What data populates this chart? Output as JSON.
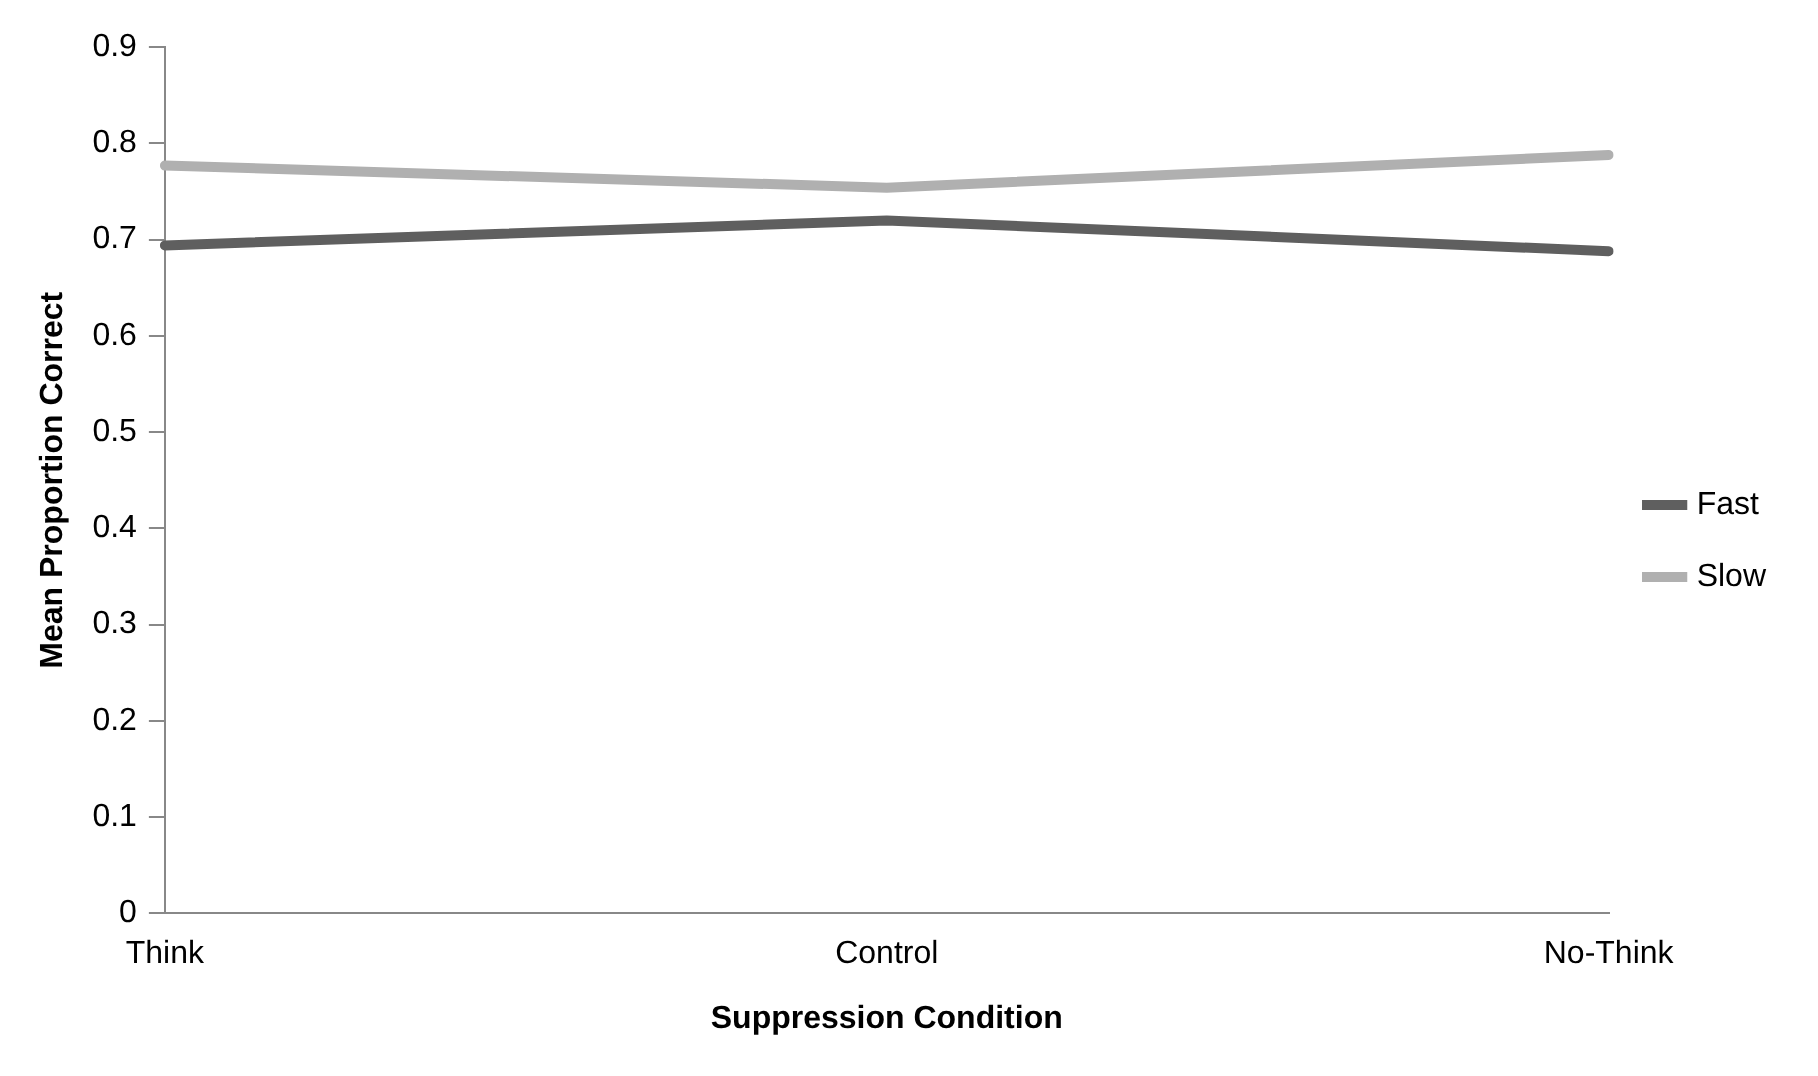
{
  "chart_data": {
    "type": "line",
    "xlabel": "Suppression Condition",
    "ylabel": "Mean Proportion Correct",
    "categories": [
      "Think",
      "Control",
      "No-Think"
    ],
    "series": [
      {
        "name": "Fast",
        "color": "#5f5f5f",
        "values": [
          0.694,
          0.72,
          0.688
        ]
      },
      {
        "name": "Slow",
        "color": "#b0b0b0",
        "values": [
          0.777,
          0.754,
          0.788
        ]
      }
    ],
    "ylim": [
      0,
      0.9
    ],
    "yticks": [
      0,
      0.1,
      0.2,
      0.3,
      0.4,
      0.5,
      0.6,
      0.7,
      0.8,
      0.9
    ],
    "grid": false,
    "legend": "right",
    "marker": "none"
  }
}
